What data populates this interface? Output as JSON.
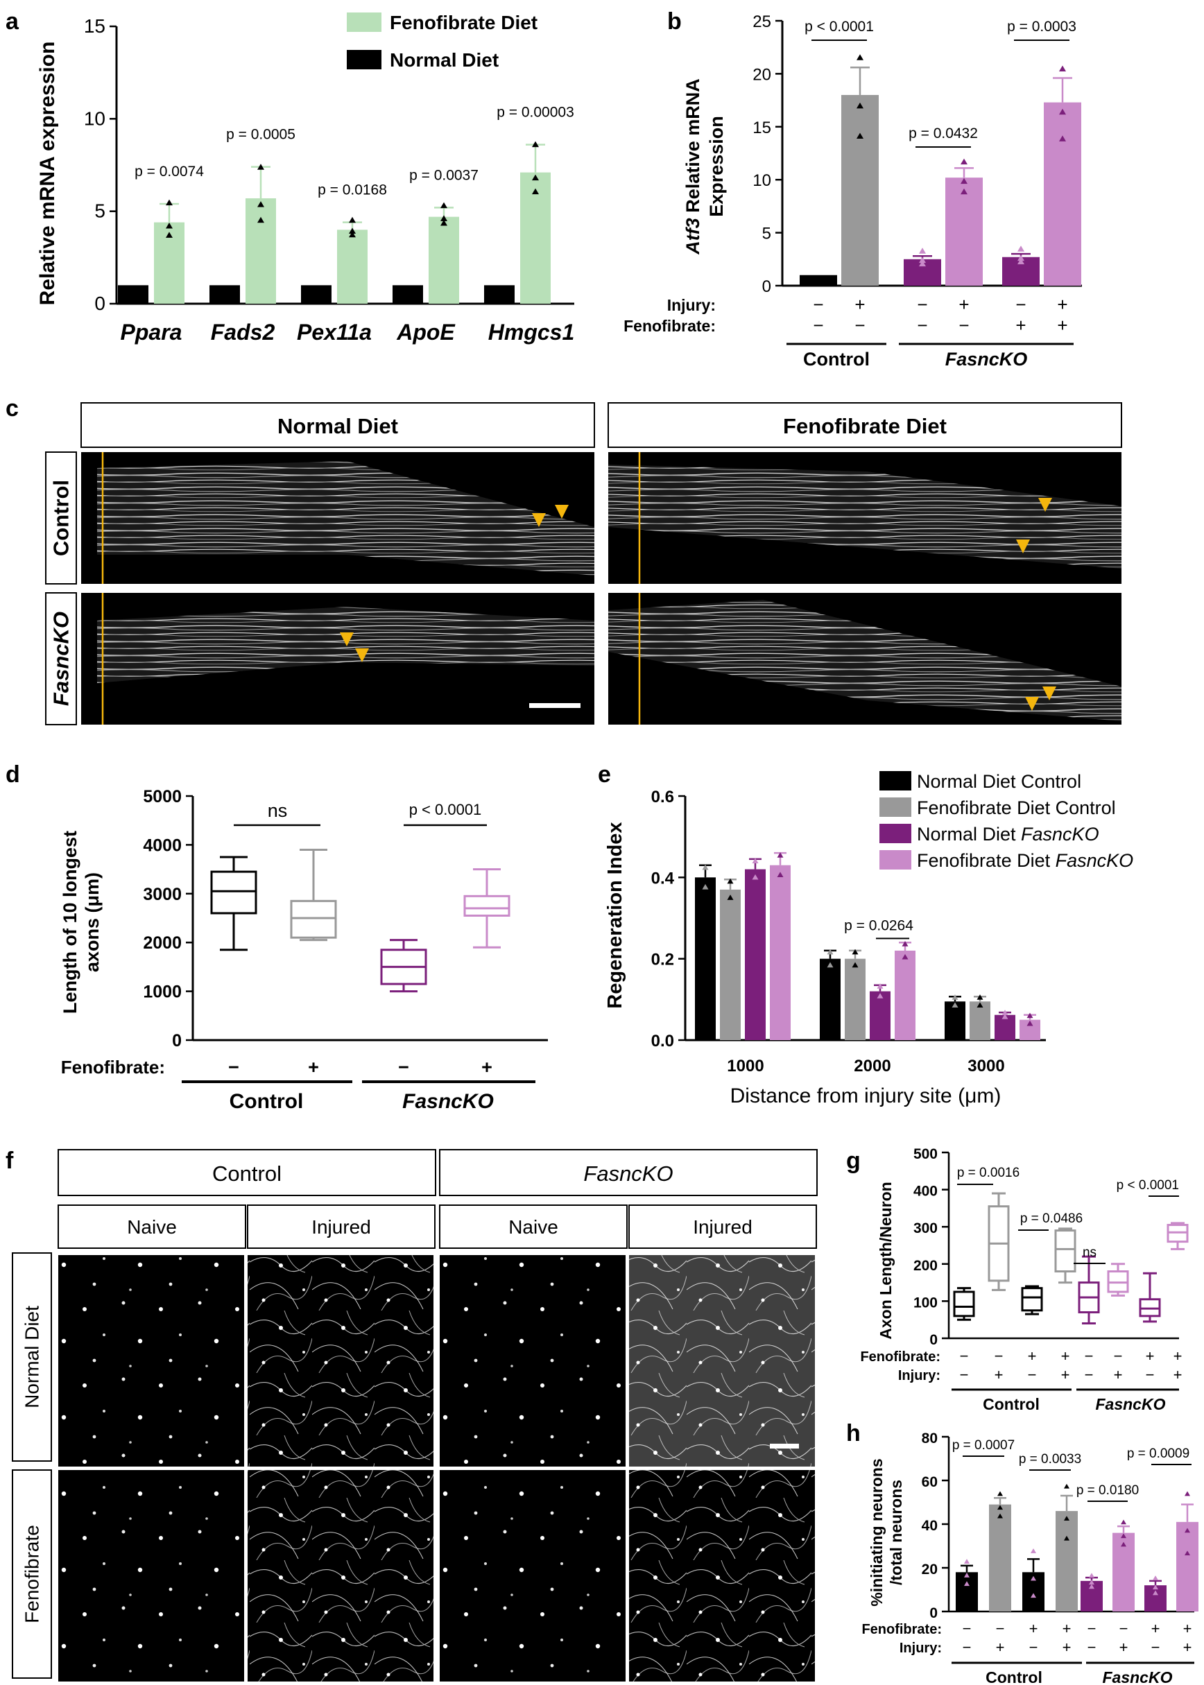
{
  "panel_letters": {
    "a": "a",
    "b": "b",
    "c": "c",
    "d": "d",
    "e": "e",
    "f": "f",
    "g": "g",
    "h": "h"
  },
  "colors": {
    "black": "#000000",
    "grey": "#999999",
    "green": "#b8e0b8",
    "purple": "#7b1f7b",
    "lavender": "#c98ac9",
    "orange": "#f5b60d"
  },
  "panel_a": {
    "ylabel": "Relative mRNA expression",
    "legend": [
      "Fenofibrate Diet",
      "Normal Diet"
    ],
    "yticks": [
      "0",
      "5",
      "10",
      "15"
    ],
    "chart_data": {
      "type": "bar",
      "categories": [
        "Ppara",
        "Fads2",
        "Pex11a",
        "ApoE",
        "Hmgcs1"
      ],
      "series": [
        {
          "name": "Normal Diet",
          "values": [
            1,
            1,
            1,
            1,
            1
          ]
        },
        {
          "name": "Fenofibrate Diet",
          "values": [
            4.4,
            5.7,
            4.0,
            4.7,
            7.1
          ],
          "errors": [
            1.0,
            1.7,
            0.4,
            0.5,
            1.5
          ]
        }
      ],
      "pvalues": [
        "p = 0.0074",
        "p = 0.0005",
        "p = 0.0168",
        "p = 0.0037",
        "p = 0.00003"
      ],
      "ylim": [
        0,
        15
      ]
    }
  },
  "panel_b": {
    "ylabel_italic": "Atf3",
    "ylabel_rest": " Relative mRNA",
    "ylabel2": "Expression",
    "yticks": [
      "0",
      "5",
      "10",
      "15",
      "20",
      "25"
    ],
    "row_labels": [
      "Injury:",
      "Fenofibrate:"
    ],
    "injury": [
      "−",
      "+",
      "−",
      "+",
      "−",
      "+"
    ],
    "fenofibrate": [
      "−",
      "−",
      "−",
      "−",
      "+",
      "+"
    ],
    "groups": [
      "Control",
      "FasncKO"
    ],
    "chart_data": {
      "type": "bar",
      "values": [
        1,
        18,
        2.5,
        10.2,
        2.7,
        17.3
      ],
      "errors": [
        0,
        2.6,
        0.3,
        0.9,
        0.3,
        2.3
      ],
      "ylim": [
        0,
        25
      ],
      "pvalues": [
        "p < 0.0001",
        "p = 0.0432",
        "p = 0.0003"
      ]
    }
  },
  "panel_c": {
    "col_headers": [
      "Normal Diet",
      "Fenofibrate Diet"
    ],
    "row_headers": [
      "Control",
      "FasncKO"
    ]
  },
  "panel_d": {
    "ylabel": "Length of 10 longest",
    "ylabel2": "axons (μm)",
    "yticks": [
      "0",
      "1000",
      "2000",
      "3000",
      "4000",
      "5000"
    ],
    "row_label": "Fenofibrate:",
    "fenofibrate": [
      "−",
      "+",
      "−",
      "+"
    ],
    "groups": [
      "Control",
      "FasncKO"
    ],
    "sig": [
      "ns",
      "p < 0.0001"
    ],
    "chart_data": {
      "type": "box",
      "boxes": [
        {
          "min": 1850,
          "q1": 2600,
          "median": 3050,
          "q3": 3450,
          "max": 3750
        },
        {
          "min": 2050,
          "q1": 2100,
          "median": 2500,
          "q3": 2850,
          "max": 3900
        },
        {
          "min": 1000,
          "q1": 1150,
          "median": 1500,
          "q3": 1850,
          "max": 2050
        },
        {
          "min": 1900,
          "q1": 2550,
          "median": 2700,
          "q3": 2950,
          "max": 3500
        }
      ],
      "ylim": [
        0,
        5000
      ]
    }
  },
  "panel_e": {
    "ylabel": "Regeneration Index",
    "xlabel": "Distance from injury site (μm)",
    "yticks": [
      "0.0",
      "0.2",
      "0.4",
      "0.6"
    ],
    "legend": [
      "Normal Diet Control",
      "Fenofibrate Diet Control",
      "Normal Diet ",
      "Fenofibrate Diet "
    ],
    "legend_italic": "FasncKO",
    "pvalue": "p = 0.0264",
    "chart_data": {
      "type": "bar",
      "categories": [
        "1000",
        "2000",
        "3000"
      ],
      "series": [
        {
          "name": "Normal Diet Control",
          "values": [
            0.4,
            0.2,
            0.095
          ],
          "errors": [
            0.03,
            0.02,
            0.012
          ]
        },
        {
          "name": "Fenofibrate Diet Control",
          "values": [
            0.37,
            0.2,
            0.095
          ],
          "errors": [
            0.025,
            0.02,
            0.012
          ]
        },
        {
          "name": "Normal Diet FasncKO",
          "values": [
            0.42,
            0.12,
            0.062
          ],
          "errors": [
            0.025,
            0.015,
            0.006
          ]
        },
        {
          "name": "Fenofibrate Diet FasncKO",
          "values": [
            0.43,
            0.22,
            0.05
          ],
          "errors": [
            0.03,
            0.02,
            0.012
          ]
        }
      ],
      "ylim": [
        0,
        0.6
      ]
    }
  },
  "panel_f": {
    "col_headers": [
      "Control",
      "FasncKO"
    ],
    "sub_headers": [
      "Naive",
      "Injured",
      "Naive",
      "Injured"
    ],
    "row_headers": [
      "Normal Diet",
      "Fenofibrate"
    ]
  },
  "panel_g": {
    "ylabel": "Axon Length/Neuron",
    "yticks": [
      "0",
      "100",
      "200",
      "300",
      "400",
      "500"
    ],
    "row_labels": [
      "Fenofibrate:",
      "Injury:"
    ],
    "fenofibrate": [
      "−",
      "−",
      "+",
      "+",
      "−",
      "−",
      "+",
      "+"
    ],
    "injury": [
      "−",
      "+",
      "−",
      "+",
      "−",
      "+",
      "−",
      "+"
    ],
    "groups": [
      "Control",
      "FasncKO"
    ],
    "sig": [
      "p = 0.0016",
      "p = 0.0486",
      "ns",
      "p < 0.0001"
    ],
    "chart_data": {
      "type": "box",
      "boxes": [
        {
          "min": 50,
          "q1": 60,
          "median": 85,
          "q3": 125,
          "max": 135
        },
        {
          "min": 130,
          "q1": 155,
          "median": 255,
          "q3": 355,
          "max": 390
        },
        {
          "min": 65,
          "q1": 75,
          "median": 110,
          "q3": 135,
          "max": 140
        },
        {
          "min": 150,
          "q1": 180,
          "median": 240,
          "q3": 290,
          "max": 295
        },
        {
          "min": 40,
          "q1": 70,
          "median": 110,
          "q3": 150,
          "max": 220
        },
        {
          "min": 115,
          "q1": 125,
          "median": 150,
          "q3": 180,
          "max": 200
        },
        {
          "min": 45,
          "q1": 60,
          "median": 80,
          "q3": 105,
          "max": 175
        },
        {
          "min": 240,
          "q1": 260,
          "median": 285,
          "q3": 305,
          "max": 310
        }
      ],
      "ylim": [
        0,
        500
      ]
    }
  },
  "panel_h": {
    "ylabel": "%initiating neurons",
    "ylabel2": "/total neurons",
    "yticks": [
      "0",
      "20",
      "40",
      "60",
      "80"
    ],
    "row_labels": [
      "Fenofibrate:",
      "Injury:"
    ],
    "fenofibrate": [
      "−",
      "−",
      "+",
      "+",
      "−",
      "−",
      "+",
      "+"
    ],
    "injury": [
      "−",
      "+",
      "−",
      "+",
      "−",
      "+",
      "−",
      "+"
    ],
    "groups": [
      "Control",
      "FasncKO"
    ],
    "pvalues": [
      "p = 0.0007",
      "p = 0.0033",
      "p = 0.0180",
      "p = 0.0009"
    ],
    "chart_data": {
      "type": "bar",
      "values": [
        18,
        49,
        18,
        46,
        14,
        36,
        12,
        41
      ],
      "errors": [
        3,
        3,
        6,
        7,
        1.5,
        3,
        2,
        8
      ],
      "ylim": [
        0,
        80
      ]
    }
  }
}
